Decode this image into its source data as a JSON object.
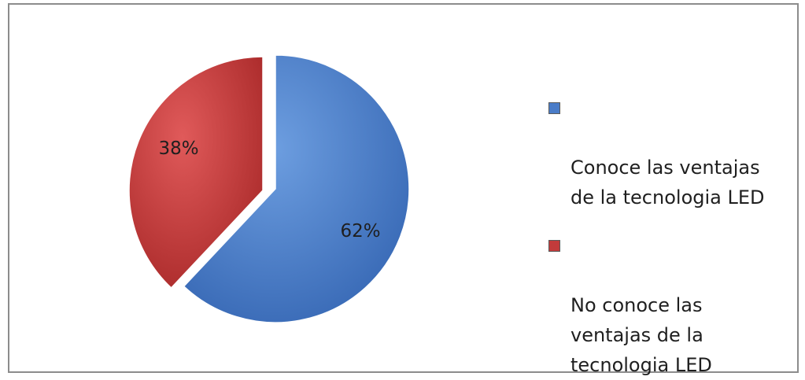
{
  "chart_data": {
    "type": "pie",
    "slices": [
      {
        "label": "Conoce las ventajas de la tecnologia LED",
        "value": 62,
        "display": "62%",
        "color": "#4a7cc8"
      },
      {
        "label": "No conoce las ventajas de la tecnologia LED",
        "value": 38,
        "display": "38%",
        "color": "#c23b3b"
      }
    ],
    "legend": {
      "position": "right",
      "entries": [
        {
          "text": "Conoce las ventajas\nde la tecnologia LED",
          "color": "#4a7cc8"
        },
        {
          "text": "No conoce las\nventajas de la\ntecnologia LED",
          "color": "#c23b3b"
        }
      ]
    }
  }
}
